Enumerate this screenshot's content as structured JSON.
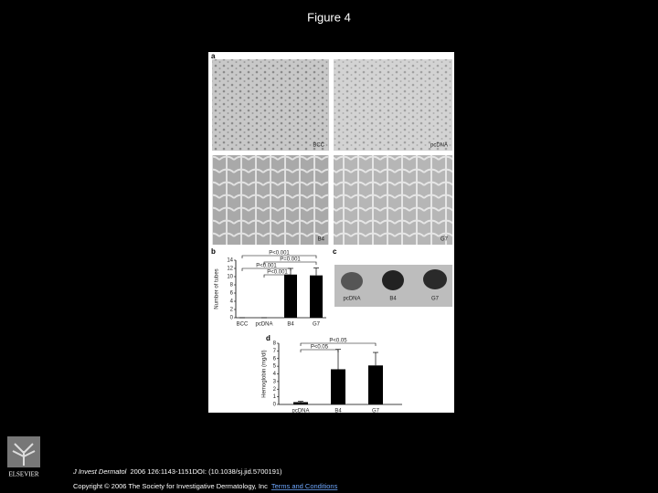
{
  "title": "Figure 4",
  "figure": {
    "panel_a": {
      "label": "a",
      "images": [
        "BCC",
        "pcDNA",
        "B4",
        "G7"
      ]
    },
    "panel_b": {
      "label": "b",
      "y_label": "Number of tubes",
      "categories": [
        "BCC",
        "pcDNA",
        "B4",
        "G7"
      ],
      "values": [
        0,
        0,
        10.5,
        10.3
      ],
      "errors": [
        0,
        0,
        1.5,
        1.8
      ],
      "ylim": [
        0,
        14
      ],
      "yticks": [
        0,
        2,
        4,
        6,
        8,
        10,
        12,
        14
      ],
      "comparisons": [
        "P<0.001",
        "P=0.001",
        "P<0.001",
        "P<0.001"
      ]
    },
    "panel_c": {
      "label": "c",
      "samples": [
        "pcDNA",
        "B4",
        "G7"
      ]
    },
    "panel_d": {
      "label": "d",
      "y_label": "Hemoglobin (mg/dl)",
      "categories": [
        "pcDNA",
        "B4",
        "G7"
      ],
      "values": [
        0.3,
        4.6,
        5.1
      ],
      "errors": [
        0.1,
        2.6,
        1.7
      ],
      "ylim": [
        0,
        8
      ],
      "yticks": [
        0,
        1,
        2,
        3,
        4,
        5,
        6,
        7,
        8
      ],
      "comparisons": [
        "P<0.05",
        "P<0.05"
      ]
    }
  },
  "footer": {
    "journal": "J Invest Dermatol",
    "citation": "2006 126:1143-1151DOI: (10.1038/sj.jid.5700191)",
    "copyright": "Copyright © 2006 The Society for Investigative Dermatology, Inc",
    "link": "Terms and Conditions"
  },
  "logo": "ELSEVIER"
}
